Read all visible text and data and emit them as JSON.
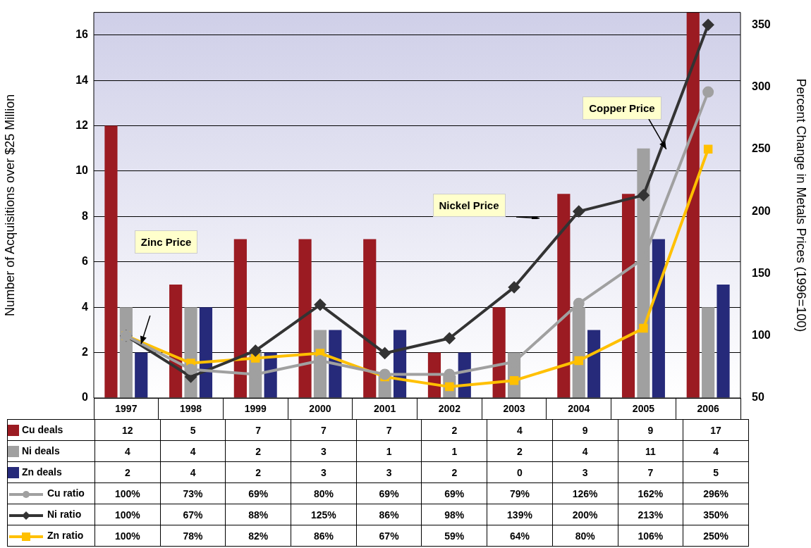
{
  "chart_data": {
    "type": "bar",
    "ylabel": "Number of Acquisitions over $25 Million",
    "y2label": "Percent Change in Metals Prices (1996=100)",
    "categories": [
      "1997",
      "1998",
      "1999",
      "2000",
      "2001",
      "2002",
      "2003",
      "2004",
      "2005",
      "2006"
    ],
    "series": [
      {
        "name": "Cu deals",
        "color": "#9b1b22",
        "values": [
          12,
          5,
          7,
          7,
          7,
          2,
          4,
          9,
          9,
          17
        ],
        "value_labels": [
          "12",
          "5",
          "7",
          "7",
          "7",
          "2",
          "4",
          "9",
          "9",
          "17"
        ]
      },
      {
        "name": "Ni deals",
        "color": "#a0a0a0",
        "values": [
          4,
          4,
          2,
          3,
          1,
          1,
          2,
          4,
          11,
          4
        ],
        "value_labels": [
          "4",
          "4",
          "2",
          "3",
          "1",
          "1",
          "2",
          "4",
          "11",
          "4"
        ]
      },
      {
        "name": "Zn deals",
        "color": "#262a7a",
        "values": [
          2,
          4,
          2,
          3,
          3,
          2,
          0,
          3,
          7,
          5
        ],
        "value_labels": [
          "2",
          "4",
          "2",
          "3",
          "3",
          "2",
          "0",
          "3",
          "7",
          "5"
        ]
      },
      {
        "name": "Cu ratio",
        "type": "line",
        "axis": "y2",
        "marker": "circle",
        "color": "#a0a0a0",
        "values": [
          100,
          73,
          69,
          80,
          69,
          69,
          79,
          126,
          162,
          296
        ],
        "value_labels": [
          "100%",
          "73%",
          "69%",
          "80%",
          "69%",
          "69%",
          "79%",
          "126%",
          "162%",
          "296%"
        ]
      },
      {
        "name": "Ni ratio",
        "type": "line",
        "axis": "y2",
        "marker": "diamond",
        "color": "#333333",
        "values": [
          100,
          67,
          88,
          125,
          86,
          98,
          139,
          200,
          213,
          350
        ],
        "value_labels": [
          "100%",
          "67%",
          "88%",
          "125%",
          "86%",
          "98%",
          "139%",
          "200%",
          "213%",
          "350%"
        ]
      },
      {
        "name": "Zn ratio",
        "type": "line",
        "axis": "y2",
        "marker": "square",
        "color": "#ffc000",
        "values": [
          100,
          78,
          82,
          86,
          67,
          59,
          64,
          80,
          106,
          250
        ],
        "value_labels": [
          "100%",
          "78%",
          "82%",
          "86%",
          "67%",
          "59%",
          "64%",
          "80%",
          "106%",
          "250%"
        ]
      }
    ],
    "ylim": [
      0,
      17
    ],
    "yticks": [
      0,
      2,
      4,
      6,
      8,
      10,
      12,
      14,
      16
    ],
    "y2lim": [
      50,
      360
    ],
    "y2ticks": [
      50,
      100,
      150,
      200,
      250,
      300,
      350
    ],
    "grid": "y",
    "legend": "bottom left",
    "annotations": [
      "Zinc Price",
      "Nickel Price",
      "Copper Price"
    ]
  }
}
